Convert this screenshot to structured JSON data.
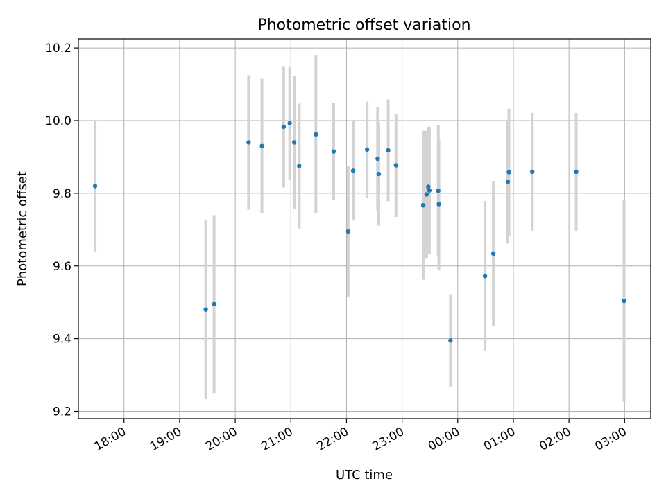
{
  "chart_data": {
    "type": "scatter",
    "title": "Photometric offset variation",
    "xlabel": "UTC time",
    "ylabel": "Photometric offset",
    "grid": true,
    "x_unit": "hours",
    "xlim": [
      17.18,
      27.47
    ],
    "ylim": [
      9.18,
      10.225
    ],
    "x_ticks": [
      {
        "value": 18,
        "label": "18:00"
      },
      {
        "value": 19,
        "label": "19:00"
      },
      {
        "value": 20,
        "label": "20:00"
      },
      {
        "value": 21,
        "label": "21:00"
      },
      {
        "value": 22,
        "label": "22:00"
      },
      {
        "value": 23,
        "label": "23:00"
      },
      {
        "value": 24,
        "label": "00:00"
      },
      {
        "value": 25,
        "label": "01:00"
      },
      {
        "value": 26,
        "label": "02:00"
      },
      {
        "value": 27,
        "label": "03:00"
      }
    ],
    "y_ticks": [
      {
        "value": 9.2,
        "label": "9.2"
      },
      {
        "value": 9.4,
        "label": "9.4"
      },
      {
        "value": 9.6,
        "label": "9.6"
      },
      {
        "value": 9.8,
        "label": "9.8"
      },
      {
        "value": 10.0,
        "label": "10.0"
      },
      {
        "value": 10.2,
        "label": "10.2"
      }
    ],
    "colors": {
      "point": "#1f77b4",
      "error_bar": "#d3d3d3",
      "grid": "#b0b0b0"
    },
    "points": [
      {
        "x": 17.48,
        "y": 9.82,
        "err": 0.18
      },
      {
        "x": 19.47,
        "y": 9.48,
        "err": 0.245
      },
      {
        "x": 19.62,
        "y": 9.495,
        "err": 0.245
      },
      {
        "x": 20.24,
        "y": 9.94,
        "err": 0.185
      },
      {
        "x": 20.48,
        "y": 9.93,
        "err": 0.185
      },
      {
        "x": 20.87,
        "y": 9.983,
        "err": 0.167
      },
      {
        "x": 20.98,
        "y": 9.993,
        "err": 0.157
      },
      {
        "x": 21.06,
        "y": 9.94,
        "err": 0.182
      },
      {
        "x": 21.15,
        "y": 9.875,
        "err": 0.172
      },
      {
        "x": 21.45,
        "y": 9.962,
        "err": 0.217
      },
      {
        "x": 21.77,
        "y": 9.915,
        "err": 0.133
      },
      {
        "x": 22.03,
        "y": 9.695,
        "err": 0.18
      },
      {
        "x": 22.12,
        "y": 9.862,
        "err": 0.137
      },
      {
        "x": 22.37,
        "y": 9.92,
        "err": 0.132
      },
      {
        "x": 22.56,
        "y": 9.895,
        "err": 0.142
      },
      {
        "x": 22.58,
        "y": 9.853,
        "err": 0.142
      },
      {
        "x": 22.75,
        "y": 9.918,
        "err": 0.14
      },
      {
        "x": 22.89,
        "y": 9.877,
        "err": 0.142
      },
      {
        "x": 23.38,
        "y": 9.767,
        "err": 0.205
      },
      {
        "x": 23.44,
        "y": 9.797,
        "err": 0.175
      },
      {
        "x": 23.47,
        "y": 9.818,
        "err": 0.165
      },
      {
        "x": 23.49,
        "y": 9.808,
        "err": 0.175
      },
      {
        "x": 23.65,
        "y": 9.807,
        "err": 0.18
      },
      {
        "x": 23.66,
        "y": 9.77,
        "err": 0.18
      },
      {
        "x": 23.87,
        "y": 9.395,
        "err": 0.127
      },
      {
        "x": 24.49,
        "y": 9.572,
        "err": 0.207
      },
      {
        "x": 24.64,
        "y": 9.634,
        "err": 0.2
      },
      {
        "x": 24.9,
        "y": 9.832,
        "err": 0.17
      },
      {
        "x": 24.92,
        "y": 9.858,
        "err": 0.175
      },
      {
        "x": 25.34,
        "y": 9.859,
        "err": 0.162
      },
      {
        "x": 26.13,
        "y": 9.859,
        "err": 0.162
      },
      {
        "x": 26.99,
        "y": 9.504,
        "err": 0.278
      }
    ]
  }
}
